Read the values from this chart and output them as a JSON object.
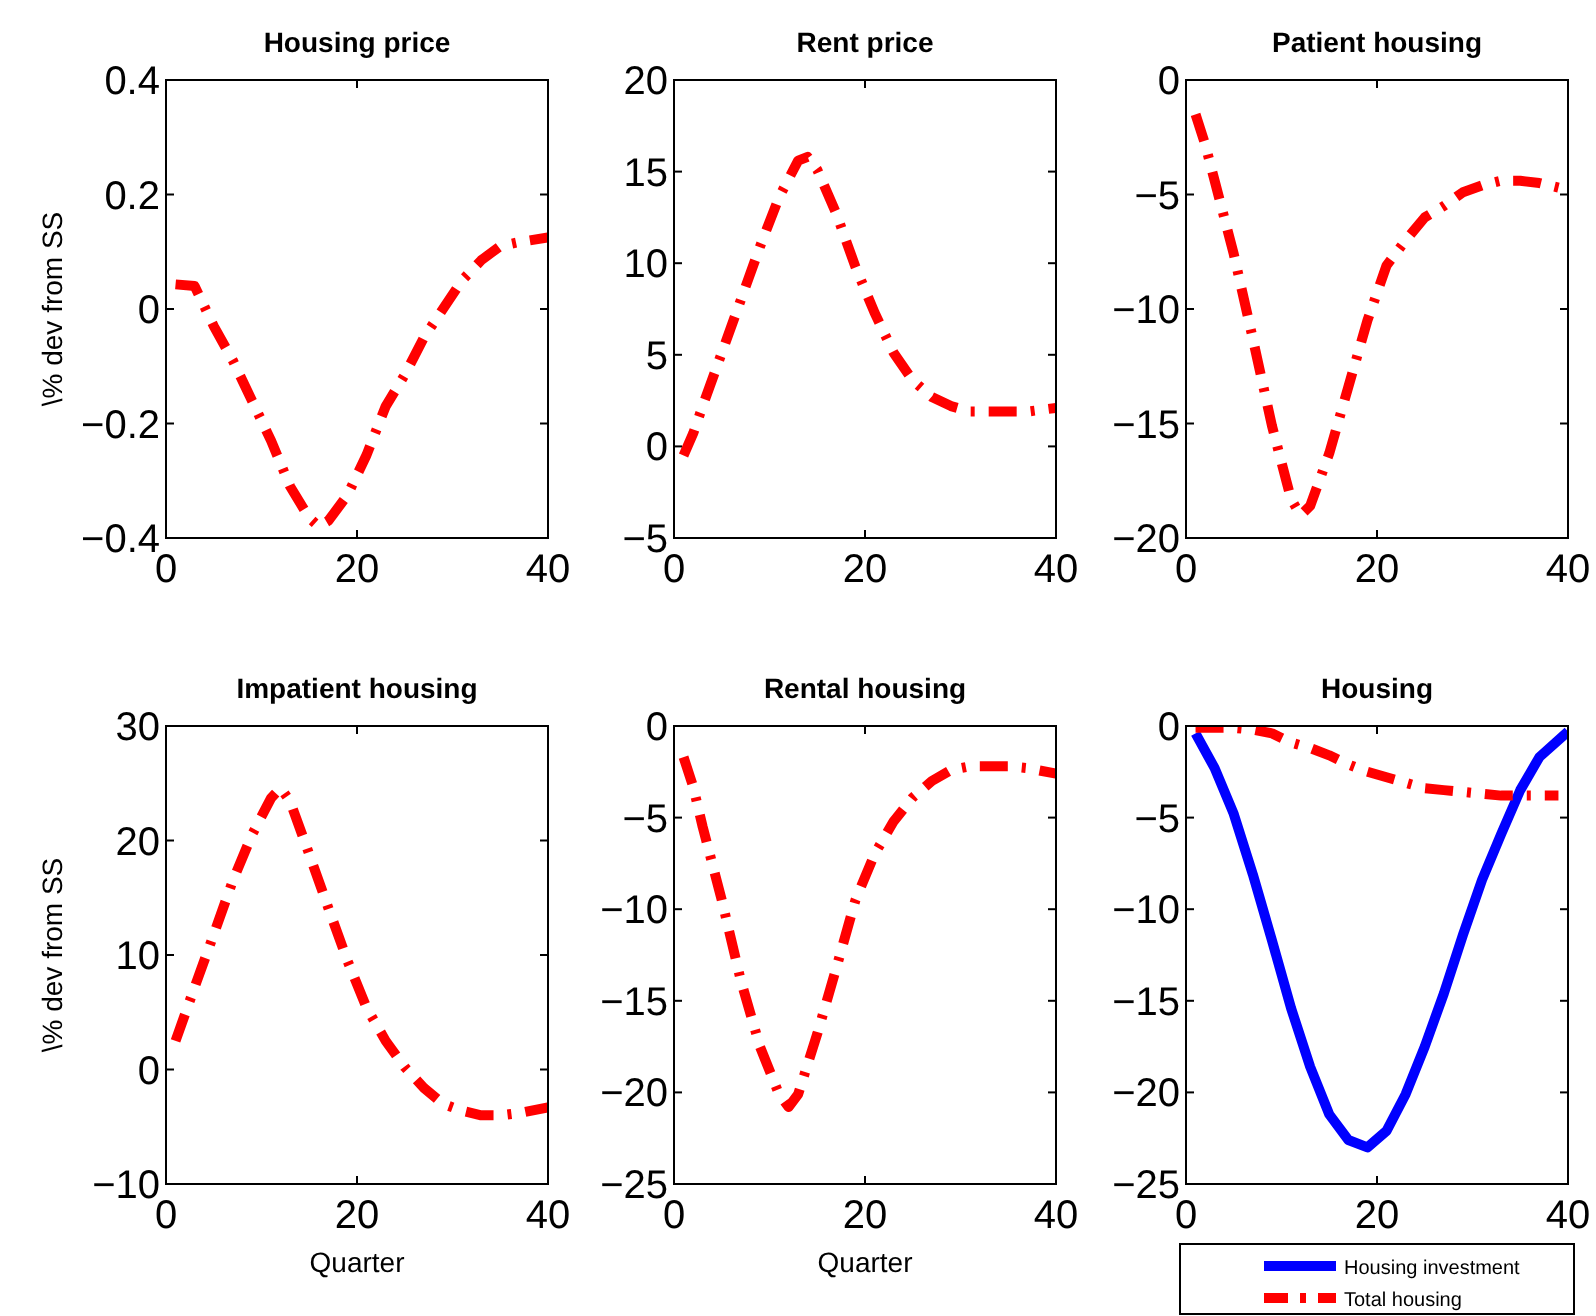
{
  "chart_data": [
    {
      "type": "line",
      "title": "Housing price",
      "ylabel": "\\% dev from SS",
      "xlim": [
        0,
        40
      ],
      "xticks": [
        0,
        20,
        40
      ],
      "ylim": [
        -0.4,
        0.4
      ],
      "yticks": [
        -0.4,
        -0.2,
        0,
        0.2,
        0.4
      ],
      "grid": false,
      "legend": false,
      "series": [
        {
          "color": "#ff0000",
          "line_style": "dashed",
          "x": [
            1,
            3,
            5,
            7,
            9,
            11,
            13,
            15,
            16,
            17,
            19,
            21,
            23,
            25,
            27,
            29,
            31,
            33,
            35,
            37,
            40
          ],
          "values": [
            0.043,
            0.04,
            -0.03,
            -0.09,
            -0.16,
            -0.23,
            -0.31,
            -0.365,
            -0.38,
            -0.37,
            -0.325,
            -0.255,
            -0.17,
            -0.115,
            -0.05,
            0.0,
            0.05,
            0.085,
            0.11,
            0.117,
            0.125
          ]
        }
      ]
    },
    {
      "type": "line",
      "title": "Rent price",
      "xlim": [
        0,
        40
      ],
      "xticks": [
        0,
        20,
        40
      ],
      "ylim": [
        -5,
        20
      ],
      "yticks": [
        -5,
        0,
        5,
        10,
        15,
        20
      ],
      "grid": false,
      "legend": false,
      "series": [
        {
          "color": "#ff0000",
          "line_style": "dashed",
          "x": [
            1,
            2,
            3,
            5,
            7,
            9,
            11,
            13,
            14,
            15,
            17,
            19,
            21,
            23,
            25,
            27,
            29,
            31,
            33,
            35,
            37,
            40
          ],
          "values": [
            -0.5,
            0.7,
            2.2,
            5.1,
            8,
            10.9,
            13.6,
            15.6,
            15.8,
            15.1,
            12.7,
            9.8,
            7.3,
            5.1,
            3.6,
            2.7,
            2.2,
            1.9,
            1.9,
            1.9,
            1.9,
            2.1
          ]
        }
      ]
    },
    {
      "type": "line",
      "title": "Patient housing",
      "xlim": [
        0,
        40
      ],
      "xticks": [
        0,
        20,
        40
      ],
      "ylim": [
        -20,
        0
      ],
      "yticks": [
        -20,
        -15,
        -10,
        -5,
        0
      ],
      "grid": false,
      "legend": false,
      "series": [
        {
          "color": "#ff0000",
          "line_style": "dashed",
          "x": [
            1,
            2,
            3,
            5,
            7,
            9,
            11,
            12,
            13,
            15,
            17,
            19,
            21,
            23,
            25,
            27,
            29,
            31,
            33,
            35,
            37,
            40
          ],
          "values": [
            -1.5,
            -2.8,
            -4.4,
            -7.6,
            -11.3,
            -15.1,
            -18.3,
            -19,
            -18.6,
            -16.3,
            -13.4,
            -10.5,
            -8.1,
            -7,
            -6,
            -5.5,
            -4.9,
            -4.6,
            -4.4,
            -4.4,
            -4.5,
            -4.8
          ]
        }
      ]
    },
    {
      "type": "line",
      "title": "Impatient housing",
      "xlabel": "Quarter",
      "ylabel": "\\% dev from SS",
      "xlim": [
        0,
        40
      ],
      "xticks": [
        0,
        20,
        40
      ],
      "ylim": [
        -10,
        30
      ],
      "yticks": [
        -10,
        0,
        10,
        20,
        30
      ],
      "grid": false,
      "legend": false,
      "series": [
        {
          "color": "#ff0000",
          "line_style": "dashed",
          "x": [
            1,
            3,
            5,
            7,
            9,
            11,
            12,
            13,
            15,
            17,
            19,
            21,
            23,
            25,
            27,
            29,
            31,
            33,
            35,
            37,
            40
          ],
          "values": [
            2.5,
            7.2,
            11.8,
            16.5,
            20.5,
            23.7,
            24.6,
            23.4,
            18.8,
            14.1,
            9.5,
            5.4,
            2.5,
            0.2,
            -1.6,
            -3,
            -3.6,
            -4,
            -4,
            -3.8,
            -3.3
          ]
        }
      ]
    },
    {
      "type": "line",
      "title": "Rental housing",
      "xlabel": "Quarter",
      "xlim": [
        0,
        40
      ],
      "xticks": [
        0,
        20,
        40
      ],
      "ylim": [
        -25,
        0
      ],
      "yticks": [
        -25,
        -20,
        -15,
        -10,
        -5,
        0
      ],
      "grid": false,
      "legend": false,
      "series": [
        {
          "color": "#ff0000",
          "line_style": "dashed",
          "x": [
            1,
            2,
            3,
            5,
            7,
            9,
            11,
            12,
            13,
            15,
            17,
            19,
            21,
            23,
            25,
            27,
            29,
            31,
            33,
            35,
            37,
            40
          ],
          "values": [
            -1.7,
            -3.3,
            -5.5,
            -9.5,
            -13.9,
            -17.5,
            -20.1,
            -20.8,
            -20.1,
            -16.8,
            -13.2,
            -9.5,
            -7,
            -5.2,
            -3.9,
            -3,
            -2.4,
            -2.2,
            -2.2,
            -2.2,
            -2.3,
            -2.6
          ]
        }
      ]
    },
    {
      "type": "line",
      "title": "Housing",
      "xlim": [
        0,
        40
      ],
      "xticks": [
        0,
        20,
        40
      ],
      "ylim": [
        -25,
        0
      ],
      "yticks": [
        -25,
        -20,
        -15,
        -10,
        -5,
        0
      ],
      "grid": false,
      "legend": "bottom",
      "series": [
        {
          "name": "Housing investment",
          "color": "#0000ff",
          "line_style": "solid",
          "x": [
            1,
            3,
            5,
            7,
            9,
            11,
            13,
            15,
            17,
            19,
            21,
            23,
            25,
            27,
            29,
            31,
            33,
            35,
            37,
            40
          ],
          "values": [
            -0.4,
            -2.3,
            -4.8,
            -8.1,
            -11.7,
            -15.4,
            -18.6,
            -21.2,
            -22.6,
            -23,
            -22.1,
            -20.1,
            -17.5,
            -14.6,
            -11.4,
            -8.4,
            -5.9,
            -3.5,
            -1.7,
            -0.3
          ]
        },
        {
          "name": "Total housing",
          "color": "#ff0000",
          "line_style": "dashed",
          "x": [
            1,
            5,
            7,
            9,
            11,
            13,
            15,
            17,
            19,
            21,
            23,
            25,
            27,
            29,
            31,
            33,
            35,
            37,
            39
          ],
          "values": [
            -0.1,
            -0.1,
            -0.2,
            -0.4,
            -0.9,
            -1.2,
            -1.6,
            -2.1,
            -2.5,
            -2.8,
            -3.1,
            -3.4,
            -3.5,
            -3.6,
            -3.7,
            -3.8,
            -3.8,
            -3.8,
            -3.8
          ]
        }
      ]
    }
  ]
}
